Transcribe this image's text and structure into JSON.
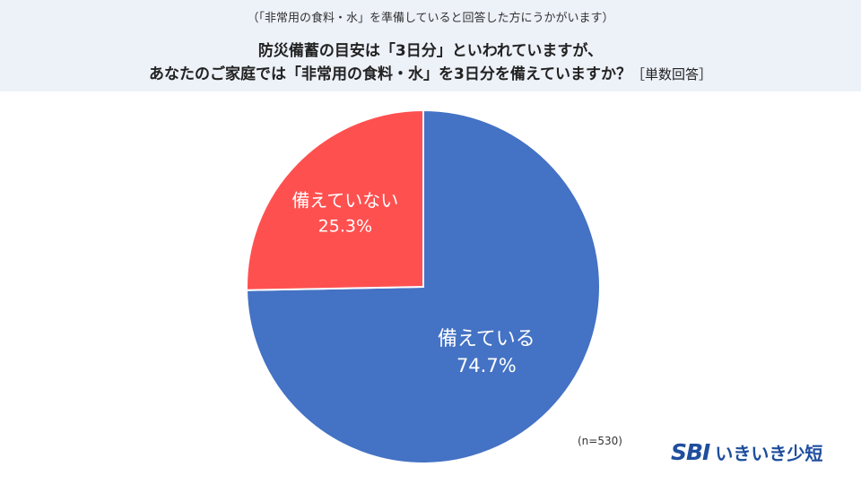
{
  "header": {
    "subtitle": "（「非常用の食料・水」を準備していると回答した方にうかがいます）",
    "title_line1": "防災備蓄の目安は「3日分」といわれていますが、",
    "title_line2": "あなたのご家庭では「非常用の食料・水」を3日分を備えていますか？",
    "title_unit": "［単数回答］"
  },
  "chart_data": {
    "type": "pie",
    "title": "",
    "slices": [
      {
        "label": "備えている",
        "value": 74.7,
        "display": "74.7%",
        "color": "#4472c4"
      },
      {
        "label": "備えていない",
        "value": 25.3,
        "display": "25.3%",
        "color": "#ff5050"
      }
    ],
    "start_angle": "12 o'clock, clockwise",
    "legend": "none"
  },
  "footer": {
    "sample_size": "(n=530)",
    "logo_sbi": "SBI",
    "logo_name": "いきいき少短"
  }
}
